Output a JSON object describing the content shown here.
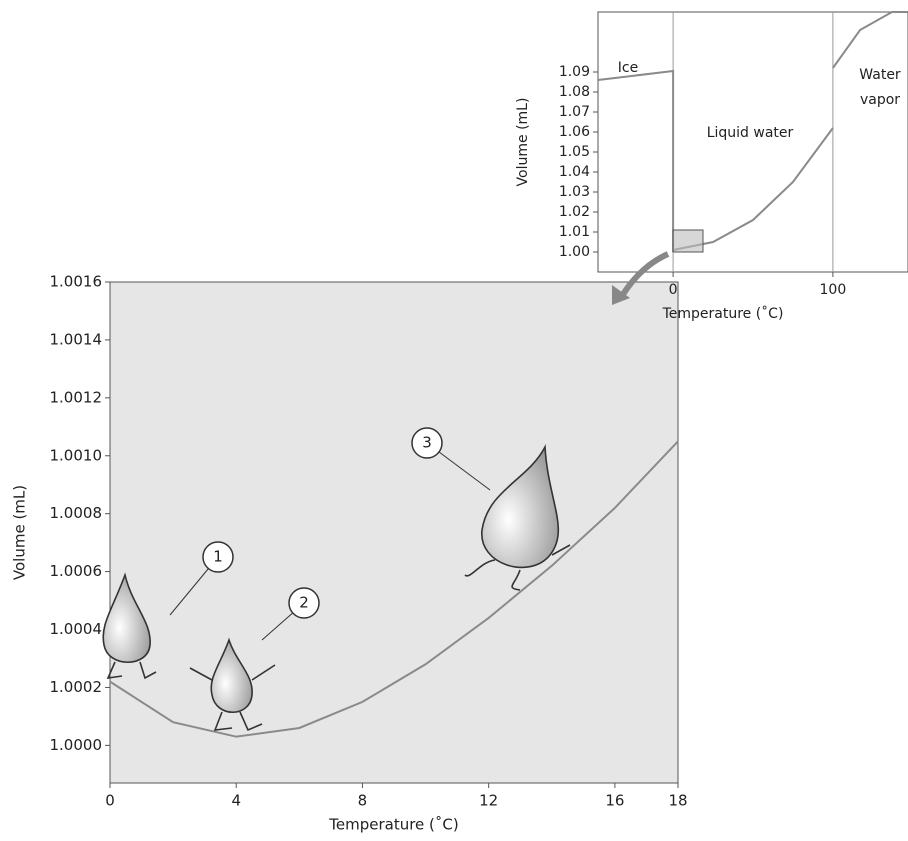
{
  "chart_data": [
    {
      "type": "line",
      "x_label": "Temperature (˚C)",
      "y_label": "Volume (mL)",
      "xlim": [
        0,
        18
      ],
      "ylim": [
        0.99987,
        1.0016
      ],
      "xticks": [
        0,
        4,
        8,
        12,
        16,
        18
      ],
      "yticks": [
        {
          "value": 1,
          "label": "1.0000"
        },
        {
          "value": 1.0002,
          "label": "1.0002"
        },
        {
          "value": 1.0004,
          "label": "1.0004"
        },
        {
          "value": 1.0006,
          "label": "1.0006"
        },
        {
          "value": 1.0008,
          "label": "1.0008"
        },
        {
          "value": 1.001,
          "label": "1.0010"
        },
        {
          "value": 1.0012,
          "label": "1.0012"
        },
        {
          "value": 1.0014,
          "label": "1.0014"
        },
        {
          "value": 1.0016,
          "label": "1.0016"
        }
      ],
      "background": "#e6e6e6",
      "series": [
        {
          "x": [
            0,
            2,
            4,
            6,
            8,
            10,
            12,
            14,
            16,
            18
          ],
          "values": [
            1.00022,
            1.00008,
            1.00003,
            1.00006,
            1.00015,
            1.00028,
            1.00044,
            1.00062,
            1.00082,
            1.00105
          ],
          "color": "#8a8a8a"
        }
      ],
      "annotations": [
        "1",
        "2",
        "3"
      ]
    },
    {
      "type": "line",
      "x_label": "Temperature (˚C)",
      "y_label": "Volume (mL)",
      "xlim": [
        -47,
        147
      ],
      "ylim": [
        0.99,
        1.12
      ],
      "xticks": [
        0,
        100
      ],
      "yticks": [
        {
          "value": 1,
          "label": "1.00"
        },
        {
          "value": 1.01,
          "label": "1.01"
        },
        {
          "value": 1.02,
          "label": "1.02"
        },
        {
          "value": 1.03,
          "label": "1.03"
        },
        {
          "value": 1.04,
          "label": "1.04"
        },
        {
          "value": 1.05,
          "label": "1.05"
        },
        {
          "value": 1.06,
          "label": "1.06"
        },
        {
          "value": 1.07,
          "label": "1.07"
        },
        {
          "value": 1.08,
          "label": "1.08"
        },
        {
          "value": 1.09,
          "label": "1.09"
        }
      ],
      "background": "#ffffff",
      "boundaries": [
        0,
        100
      ],
      "series": [
        {
          "x": [
            -47,
            0,
            0
          ],
          "values": [
            1.086,
            1.0905,
            1.0
          ],
          "color": "#8a8a8a"
        },
        {
          "x": [
            0,
            25,
            50,
            75,
            100
          ],
          "values": [
            1.001,
            1.005,
            1.016,
            1.035,
            1.062
          ],
          "color": "#8a8a8a"
        },
        {
          "x": [
            100,
            117,
            137,
            147
          ],
          "values": [
            1.092,
            1.111,
            1.12,
            1.12
          ],
          "color": "#8a8a8a"
        }
      ],
      "annotations": [
        "Ice",
        "Liquid water",
        "Water",
        "vapor"
      ]
    }
  ]
}
